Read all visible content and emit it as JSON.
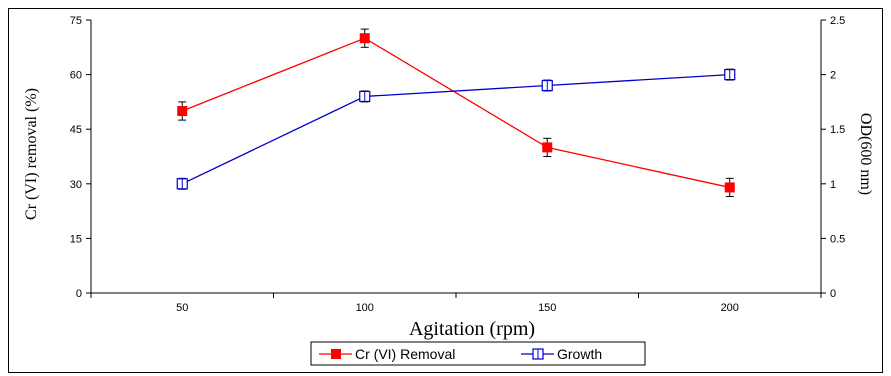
{
  "chart_data": {
    "type": "line",
    "categories": [
      "50",
      "100",
      "150",
      "200"
    ],
    "x": [
      50,
      100,
      150,
      200
    ],
    "xlabel": "Agitation (rpm)",
    "ylabel": "Cr (VI) removal (%)",
    "y2label": "OD(600 nm)",
    "ylim": [
      0,
      75
    ],
    "yticks": [
      0,
      15,
      30,
      45,
      60,
      75
    ],
    "y2lim": [
      0,
      2.5
    ],
    "y2ticks": [
      0,
      0.5,
      1,
      1.5,
      2,
      2.5
    ],
    "grid": false,
    "legend_position": "bottom-center",
    "series": [
      {
        "name": "Cr (VI) Removal",
        "axis": "left",
        "color": "#ff0000",
        "marker": "filled-square",
        "values": [
          50,
          70,
          40,
          29
        ],
        "error": [
          2.5,
          2.5,
          2.5,
          2.5
        ]
      },
      {
        "name": "Growth",
        "axis": "right",
        "color": "#0000cc",
        "marker": "open-square",
        "values": [
          1.0,
          1.8,
          1.9,
          2.0
        ],
        "error": [
          0.05,
          0.05,
          0.05,
          0.05
        ]
      }
    ]
  }
}
